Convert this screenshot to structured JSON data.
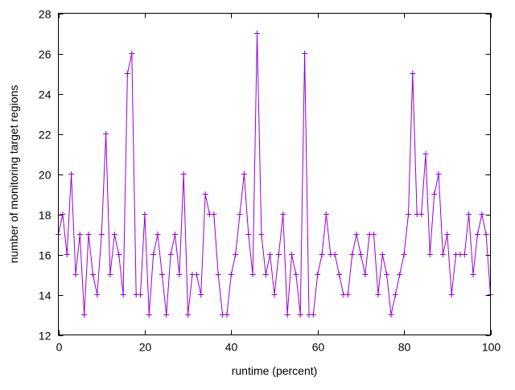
{
  "chart_data": {
    "type": "line",
    "title": "",
    "xlabel": "runtime (percent)",
    "ylabel": "number of monitoring target regions",
    "x_ticks": [
      0,
      20,
      40,
      60,
      80,
      100
    ],
    "y_ticks": [
      12,
      14,
      16,
      18,
      20,
      22,
      24,
      26,
      28
    ],
    "xlim": [
      0,
      100
    ],
    "ylim": [
      12,
      28
    ],
    "grid": "off",
    "legend": "none",
    "marker": "plus",
    "series": [
      {
        "name": "monitoring target regions",
        "x_unit": "percent, evenly spaced 0-100",
        "values": [
          17,
          18,
          16,
          20,
          15,
          17,
          13,
          17,
          15,
          14,
          17,
          22,
          15,
          17,
          16,
          14,
          25,
          26,
          14,
          14,
          18,
          13,
          16,
          17,
          15,
          13,
          16,
          17,
          15,
          20,
          13,
          15,
          15,
          14,
          19,
          18,
          18,
          15,
          13,
          13,
          15,
          16,
          18,
          20,
          17,
          15,
          27,
          17,
          15,
          16,
          14,
          16,
          18,
          13,
          16,
          15,
          13,
          26,
          13,
          13,
          15,
          16,
          18,
          16,
          16,
          15,
          14,
          14,
          16,
          17,
          16,
          15,
          17,
          17,
          14,
          16,
          15,
          13,
          14,
          15,
          16,
          18,
          25,
          18,
          18,
          21,
          16,
          19,
          20,
          16,
          17,
          14,
          16,
          16,
          16,
          18,
          15,
          17,
          18,
          17,
          14
        ]
      }
    ],
    "colors": {
      "line": "#9400d3",
      "axis": "#000000",
      "background": "#ffffff"
    }
  }
}
